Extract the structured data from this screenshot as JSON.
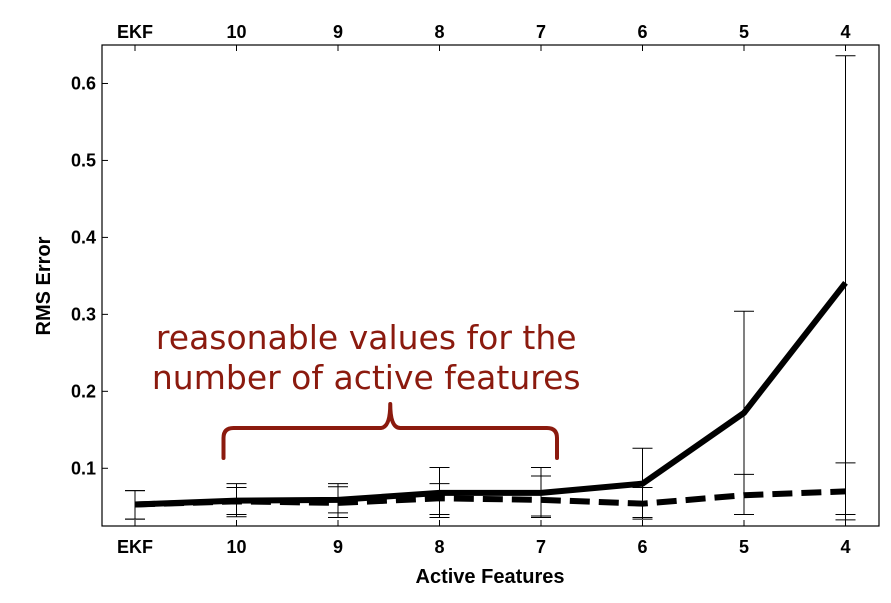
{
  "chart_data": {
    "type": "line",
    "title": "",
    "xlabel": "Active Features",
    "ylabel": "RMS Error",
    "categories": [
      "EKF",
      "10",
      "9",
      "8",
      "7",
      "6",
      "5",
      "4"
    ],
    "top_axis_labels": [
      "EKF",
      "10",
      "9",
      "8",
      "7",
      "6",
      "5",
      "4"
    ],
    "ylim": [
      0.025,
      0.65
    ],
    "yticks": [
      0.1,
      0.2,
      0.3,
      0.4,
      0.5,
      0.6
    ],
    "ytick_labels": [
      "0.1",
      "0.2",
      "0.3",
      "0.4",
      "0.5",
      "0.6"
    ],
    "grid": false,
    "legend": "none",
    "series": [
      {
        "style": "solid",
        "color": "#000000",
        "values": [
          0.053,
          0.058,
          0.059,
          0.068,
          0.068,
          0.08,
          0.172,
          0.341
        ],
        "error_low": [
          0.034,
          0.037,
          0.036,
          0.036,
          0.036,
          0.034,
          0.04,
          0.033
        ],
        "error_high": [
          0.071,
          0.08,
          0.08,
          0.101,
          0.101,
          0.126,
          0.304,
          0.636
        ]
      },
      {
        "style": "dashed",
        "color": "#000000",
        "values": [
          0.053,
          0.057,
          0.055,
          0.061,
          0.059,
          0.054,
          0.065,
          0.07
        ],
        "error_low": [
          0.034,
          0.04,
          0.042,
          0.04,
          0.038,
          0.036,
          0.04,
          0.04
        ],
        "error_high": [
          0.071,
          0.075,
          0.076,
          0.08,
          0.09,
          0.075,
          0.092,
          0.107
        ]
      }
    ],
    "annotation": {
      "text_lines": [
        "reasonable values for the",
        "number of active features"
      ],
      "color": "#8b1a0e",
      "spans_categories": [
        "10",
        "7"
      ]
    }
  }
}
